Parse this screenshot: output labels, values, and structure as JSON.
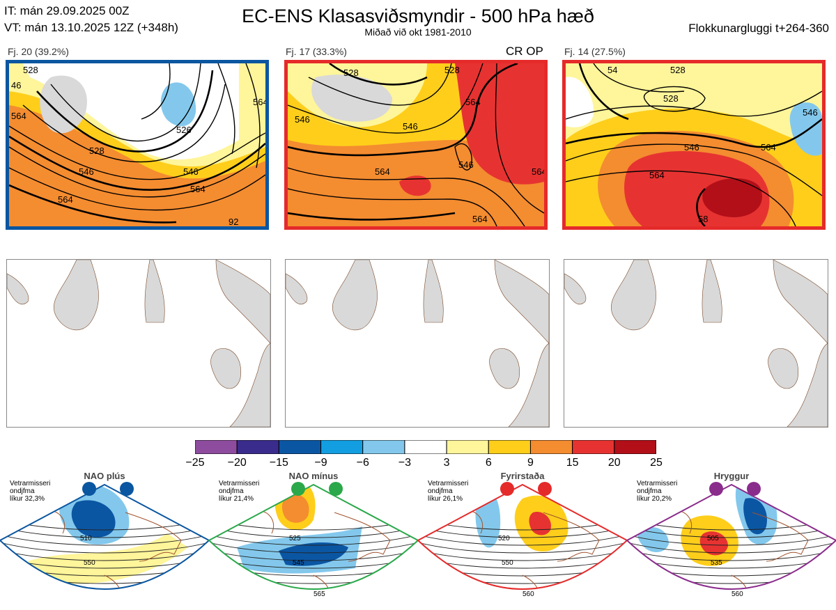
{
  "header": {
    "it": "IT: mán 29.09.2025 00Z",
    "vt": "VT: mán 13.10.2025 12Z  (+348h)",
    "title": "EC-ENS Klasasviðsmyndir - 500 hPa hæð",
    "subtitle": "Miðað við okt 1981-2010",
    "window": "Flokkunargluggi t+264-360"
  },
  "clusters": [
    {
      "label": "Fj. 20 (39.2%)",
      "border_color": "#0a56a0",
      "contours": [
        "528",
        "46",
        "564",
        "528",
        "546",
        "526",
        "564",
        "564",
        "546",
        "564",
        "92"
      ]
    },
    {
      "label": "Fj. 17 (33.3%)",
      "border_color": "#e52a2a",
      "tag": "CR OP",
      "contours": [
        "528",
        "528",
        "546",
        "546",
        "564",
        "546",
        "564",
        "564",
        "564"
      ]
    },
    {
      "label": "Fj. 14 (27.5%)",
      "border_color": "#e52a2a",
      "contours": [
        "54",
        "528",
        "528",
        "546",
        "546",
        "564",
        "564",
        "58"
      ]
    }
  ],
  "colorbar": {
    "ticks": [
      "−25",
      "−20",
      "−15",
      "−9",
      "−6",
      "−3",
      "3",
      "6",
      "9",
      "15",
      "20",
      "25"
    ],
    "colors": [
      "#8e4c9e",
      "#3a2c8c",
      "#0b56a3",
      "#129ee0",
      "#83c8ec",
      "#ffffff",
      "#fff59a",
      "#fece1b",
      "#f48c30",
      "#e63331",
      "#b30f19"
    ]
  },
  "regimes": [
    {
      "name": "NAO plús",
      "info": [
        "Vetrarmisseri",
        "ondjfma",
        "líkur 32,3%"
      ],
      "color": "#0a56a0",
      "labels": [
        "510",
        "550"
      ]
    },
    {
      "name": "NAO mínus",
      "info": [
        "Vetrarmisseri",
        "ondjfma",
        "líkur 21,4%"
      ],
      "color": "#2aa84a",
      "labels": [
        "525",
        "545",
        "565"
      ]
    },
    {
      "name": "Fyrirstaða",
      "info": [
        "Vetrarmisseri",
        "ondjfma",
        "líkur 26,1%"
      ],
      "color": "#e52a2a",
      "labels": [
        "520",
        "550",
        "560"
      ]
    },
    {
      "name": "Hryggur",
      "info": [
        "Vetrarmisseri",
        "ondjfma",
        "líkur 20,2%"
      ],
      "color": "#8a2c8c",
      "labels": [
        "505",
        "535",
        "560"
      ]
    }
  ]
}
